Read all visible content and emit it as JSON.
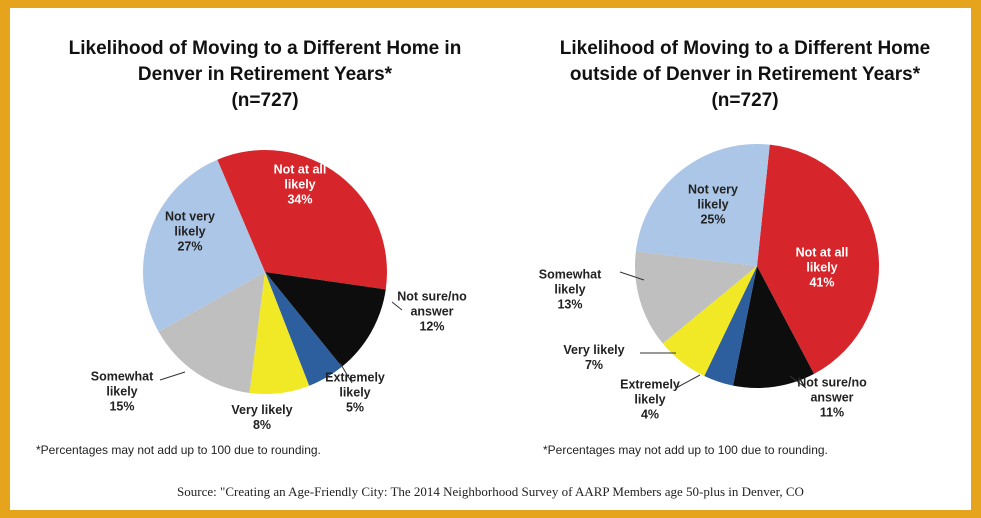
{
  "charts_title_note": null,
  "chart_data": [
    {
      "type": "pie",
      "title": "Likelihood of Moving to a Different Home in Denver in Retirement Years*",
      "subtitle": "(n=727)",
      "categories": [
        "Not at all likely",
        "Not sure/no answer",
        "Extremely likely",
        "Very likely",
        "Somewhat likely",
        "Not very likely"
      ],
      "values": [
        34,
        12,
        5,
        8,
        15,
        27
      ],
      "value_labels": [
        "34%",
        "12%",
        "5%",
        "8%",
        "15%",
        "27%"
      ],
      "colors": [
        "#d7262b",
        "#0d0d0d",
        "#2d5e9e",
        "#f1e925",
        "#bfbfbf",
        "#abc6e6"
      ],
      "note": "*Percentages may not add up to 100 due to rounding."
    },
    {
      "type": "pie",
      "title": "Likelihood of Moving to a Different Home outside of Denver in Retirement Years*",
      "subtitle": "(n=727)",
      "categories": [
        "Not at all likely",
        "Not sure/no answer",
        "Extremely likely",
        "Very likely",
        "Somewhat likely",
        "Not very likely"
      ],
      "values": [
        41,
        11,
        4,
        7,
        13,
        25
      ],
      "value_labels": [
        "41%",
        "11%",
        "4%",
        "7%",
        "13%",
        "25%"
      ],
      "colors": [
        "#d7262b",
        "#0d0d0d",
        "#2d5e9e",
        "#f1e925",
        "#bfbfbf",
        "#abc6e6"
      ],
      "note": "*Percentages may not add up to 100 due to rounding."
    }
  ],
  "source": "Source: \"Creating an Age-Friendly City: The 2014 Neighborhood Survey of AARP Members age 50-plus in Denver, CO"
}
